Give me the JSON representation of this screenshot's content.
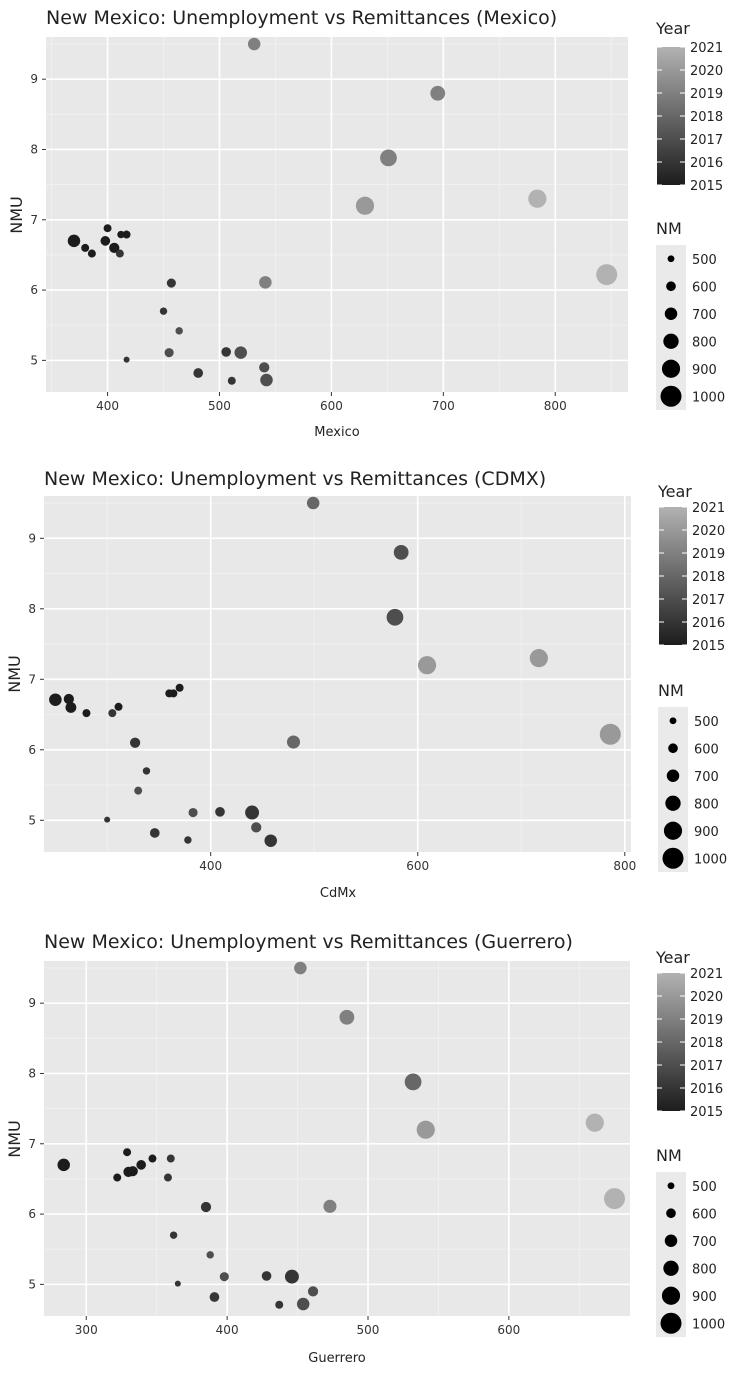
{
  "chart_data": [
    {
      "type": "scatter",
      "title": "New Mexico: Unemployment vs Remittances (Mexico)",
      "xlabel": "Mexico",
      "ylabel": "NMU",
      "xlim": [
        345,
        865
      ],
      "ylim": [
        4.55,
        9.6
      ],
      "xticks": [
        400,
        500,
        600,
        700,
        800
      ],
      "yticks": [
        5,
        6,
        7,
        8,
        9
      ],
      "grid": true,
      "legend_color": {
        "title": "Year",
        "labels": [
          "2021",
          "2020",
          "2019",
          "2018",
          "2017",
          "2016",
          "2015"
        ]
      },
      "legend_size": {
        "title": "NM",
        "labels": [
          "500",
          "600",
          "700",
          "800",
          "900",
          "1000"
        ]
      },
      "points": [
        {
          "x": 370,
          "y": 6.7,
          "year": 2015,
          "nm": 700
        },
        {
          "x": 380,
          "y": 6.6,
          "year": 2015,
          "nm": 540
        },
        {
          "x": 386,
          "y": 6.52,
          "year": 2015,
          "nm": 540
        },
        {
          "x": 398,
          "y": 6.7,
          "year": 2015,
          "nm": 600
        },
        {
          "x": 400,
          "y": 6.88,
          "year": 2015,
          "nm": 540
        },
        {
          "x": 406,
          "y": 6.6,
          "year": 2015,
          "nm": 620
        },
        {
          "x": 411,
          "y": 6.52,
          "year": 2016,
          "nm": 540
        },
        {
          "x": 412,
          "y": 6.79,
          "year": 2015,
          "nm": 520
        },
        {
          "x": 417,
          "y": 6.79,
          "year": 2015,
          "nm": 540
        },
        {
          "x": 417,
          "y": 5.01,
          "year": 2016,
          "nm": 470
        },
        {
          "x": 450,
          "y": 5.7,
          "year": 2016,
          "nm": 520
        },
        {
          "x": 455,
          "y": 5.11,
          "year": 2017,
          "nm": 580
        },
        {
          "x": 457,
          "y": 6.1,
          "year": 2016,
          "nm": 580
        },
        {
          "x": 464,
          "y": 5.42,
          "year": 2017,
          "nm": 520
        },
        {
          "x": 481,
          "y": 4.82,
          "year": 2016,
          "nm": 600
        },
        {
          "x": 506,
          "y": 5.12,
          "year": 2016,
          "nm": 600
        },
        {
          "x": 511,
          "y": 4.71,
          "year": 2016,
          "nm": 540
        },
        {
          "x": 519,
          "y": 5.11,
          "year": 2017,
          "nm": 700
        },
        {
          "x": 531,
          "y": 9.5,
          "year": 2019,
          "nm": 700
        },
        {
          "x": 540,
          "y": 4.9,
          "year": 2017,
          "nm": 620
        },
        {
          "x": 541,
          "y": 6.11,
          "year": 2019,
          "nm": 700
        },
        {
          "x": 542,
          "y": 4.72,
          "year": 2017,
          "nm": 700
        },
        {
          "x": 630,
          "y": 7.2,
          "year": 2020,
          "nm": 900
        },
        {
          "x": 651,
          "y": 7.88,
          "year": 2019,
          "nm": 850
        },
        {
          "x": 695,
          "y": 8.8,
          "year": 2019,
          "nm": 780
        },
        {
          "x": 784,
          "y": 7.3,
          "year": 2021,
          "nm": 900
        },
        {
          "x": 846,
          "y": 6.22,
          "year": 2021,
          "nm": 1000
        }
      ]
    },
    {
      "type": "scatter",
      "title": "New Mexico: Unemployment vs Remittances (CDMX)",
      "xlabel": "CdMx",
      "ylabel": "NMU",
      "xlim": [
        239,
        806
      ],
      "ylim": [
        4.55,
        9.6
      ],
      "xticks": [
        400,
        600,
        800
      ],
      "yticks": [
        5,
        6,
        7,
        8,
        9
      ],
      "grid": true,
      "legend_color": {
        "title": "Year",
        "labels": [
          "2021",
          "2020",
          "2019",
          "2018",
          "2017",
          "2016",
          "2015"
        ]
      },
      "legend_size": {
        "title": "NM",
        "labels": [
          "500",
          "600",
          "700",
          "800",
          "900",
          "1000"
        ]
      },
      "points": [
        {
          "x": 250,
          "y": 6.71,
          "year": 2015,
          "nm": 700
        },
        {
          "x": 263,
          "y": 6.72,
          "year": 2015,
          "nm": 620
        },
        {
          "x": 265,
          "y": 6.6,
          "year": 2015,
          "nm": 640
        },
        {
          "x": 280,
          "y": 6.52,
          "year": 2015,
          "nm": 540
        },
        {
          "x": 300,
          "y": 5.01,
          "year": 2016,
          "nm": 470
        },
        {
          "x": 305,
          "y": 6.52,
          "year": 2016,
          "nm": 540
        },
        {
          "x": 311,
          "y": 6.61,
          "year": 2015,
          "nm": 540
        },
        {
          "x": 327,
          "y": 6.1,
          "year": 2016,
          "nm": 620
        },
        {
          "x": 330,
          "y": 5.42,
          "year": 2017,
          "nm": 540
        },
        {
          "x": 338,
          "y": 5.7,
          "year": 2016,
          "nm": 520
        },
        {
          "x": 346,
          "y": 4.82,
          "year": 2016,
          "nm": 600
        },
        {
          "x": 360,
          "y": 6.8,
          "year": 2015,
          "nm": 540
        },
        {
          "x": 364,
          "y": 6.8,
          "year": 2015,
          "nm": 540
        },
        {
          "x": 370,
          "y": 6.88,
          "year": 2015,
          "nm": 540
        },
        {
          "x": 378,
          "y": 4.72,
          "year": 2016,
          "nm": 520
        },
        {
          "x": 383,
          "y": 5.11,
          "year": 2017,
          "nm": 580
        },
        {
          "x": 409,
          "y": 5.12,
          "year": 2016,
          "nm": 600
        },
        {
          "x": 440,
          "y": 5.11,
          "year": 2016,
          "nm": 750
        },
        {
          "x": 444,
          "y": 4.9,
          "year": 2017,
          "nm": 620
        },
        {
          "x": 458,
          "y": 4.71,
          "year": 2016,
          "nm": 700
        },
        {
          "x": 480,
          "y": 6.11,
          "year": 2018,
          "nm": 720
        },
        {
          "x": 499,
          "y": 9.5,
          "year": 2018,
          "nm": 700
        },
        {
          "x": 578,
          "y": 7.88,
          "year": 2017,
          "nm": 850
        },
        {
          "x": 584,
          "y": 8.8,
          "year": 2017,
          "nm": 780
        },
        {
          "x": 609,
          "y": 7.2,
          "year": 2020,
          "nm": 900
        },
        {
          "x": 717,
          "y": 7.3,
          "year": 2020,
          "nm": 900
        },
        {
          "x": 786,
          "y": 6.22,
          "year": 2020,
          "nm": 1000
        }
      ]
    },
    {
      "type": "scatter",
      "title": "New Mexico: Unemployment vs Remittances (Guerrero)",
      "xlabel": "Guerrero",
      "ylabel": "NMU",
      "xlim": [
        270,
        686
      ],
      "ylim": [
        4.55,
        9.6
      ],
      "xticks": [
        300,
        400,
        500,
        600
      ],
      "yticks": [
        5,
        6,
        7,
        8,
        9
      ],
      "grid": true,
      "legend_color": {
        "title": "Year",
        "labels": [
          "2021",
          "2020",
          "2019",
          "2018",
          "2017",
          "2016",
          "2015"
        ]
      },
      "legend_size": {
        "title": "NM",
        "labels": [
          "500",
          "600",
          "700",
          "800",
          "900",
          "1000"
        ]
      },
      "points": [
        {
          "x": 284,
          "y": 6.7,
          "year": 2015,
          "nm": 700
        },
        {
          "x": 322,
          "y": 6.52,
          "year": 2015,
          "nm": 540
        },
        {
          "x": 329,
          "y": 6.88,
          "year": 2015,
          "nm": 540
        },
        {
          "x": 330,
          "y": 6.6,
          "year": 2015,
          "nm": 620
        },
        {
          "x": 333,
          "y": 6.61,
          "year": 2015,
          "nm": 620
        },
        {
          "x": 339,
          "y": 6.7,
          "year": 2015,
          "nm": 600
        },
        {
          "x": 347,
          "y": 6.79,
          "year": 2015,
          "nm": 540
        },
        {
          "x": 358,
          "y": 6.52,
          "year": 2016,
          "nm": 540
        },
        {
          "x": 360,
          "y": 6.79,
          "year": 2016,
          "nm": 540
        },
        {
          "x": 362,
          "y": 5.7,
          "year": 2016,
          "nm": 520
        },
        {
          "x": 365,
          "y": 5.01,
          "year": 2016,
          "nm": 470
        },
        {
          "x": 385,
          "y": 6.1,
          "year": 2016,
          "nm": 620
        },
        {
          "x": 388,
          "y": 5.42,
          "year": 2017,
          "nm": 520
        },
        {
          "x": 391,
          "y": 4.82,
          "year": 2016,
          "nm": 600
        },
        {
          "x": 398,
          "y": 5.11,
          "year": 2017,
          "nm": 580
        },
        {
          "x": 428,
          "y": 5.12,
          "year": 2016,
          "nm": 600
        },
        {
          "x": 437,
          "y": 4.71,
          "year": 2016,
          "nm": 540
        },
        {
          "x": 446,
          "y": 5.11,
          "year": 2016,
          "nm": 750
        },
        {
          "x": 452,
          "y": 9.5,
          "year": 2019,
          "nm": 700
        },
        {
          "x": 454,
          "y": 4.72,
          "year": 2017,
          "nm": 700
        },
        {
          "x": 461,
          "y": 4.9,
          "year": 2017,
          "nm": 620
        },
        {
          "x": 473,
          "y": 6.11,
          "year": 2019,
          "nm": 720
        },
        {
          "x": 485,
          "y": 8.8,
          "year": 2019,
          "nm": 780
        },
        {
          "x": 532,
          "y": 7.88,
          "year": 2018,
          "nm": 850
        },
        {
          "x": 541,
          "y": 7.2,
          "year": 2020,
          "nm": 900
        },
        {
          "x": 661,
          "y": 7.3,
          "year": 2021,
          "nm": 900
        },
        {
          "x": 675,
          "y": 6.22,
          "year": 2021,
          "nm": 1000
        }
      ]
    }
  ]
}
